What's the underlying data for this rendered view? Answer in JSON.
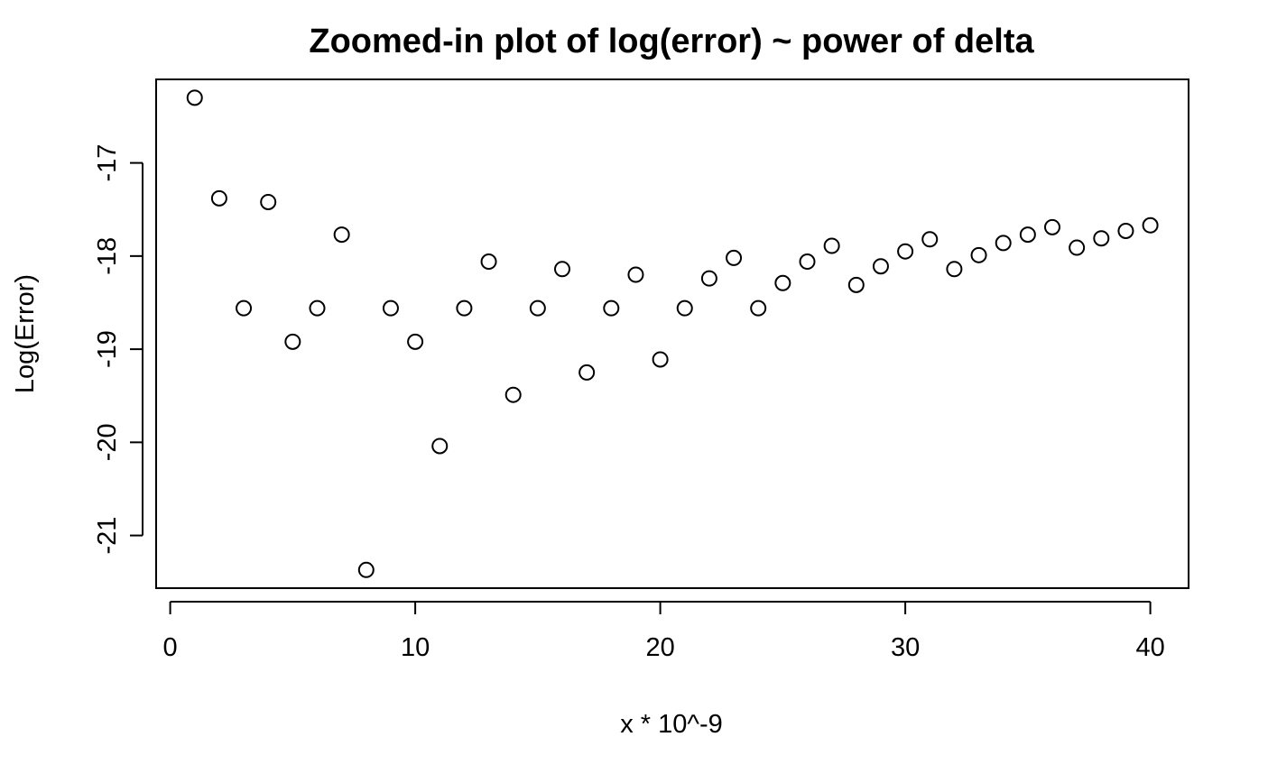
{
  "chart_data": {
    "type": "scatter",
    "title": "Zoomed-in plot of log(error) ~ power of delta",
    "xlabel": "x * 10^-9",
    "ylabel": "Log(Error)",
    "xlim": [
      0,
      42
    ],
    "ylim": [
      -21.55,
      -16.3
    ],
    "xticks": [
      0,
      10,
      20,
      30,
      40
    ],
    "yticks": [
      -17,
      -18,
      -19,
      -20,
      -21
    ],
    "grid": false,
    "legend": "none",
    "x": [
      1,
      2,
      3,
      4,
      5,
      6,
      7,
      8,
      9,
      10,
      11,
      12,
      13,
      14,
      15,
      16,
      17,
      18,
      19,
      20,
      21,
      22,
      23,
      24,
      25,
      26,
      27,
      28,
      29,
      30,
      31,
      32,
      33,
      34,
      35,
      36,
      37,
      38,
      39,
      40
    ],
    "y": [
      -16.3,
      -17.38,
      -18.56,
      -17.42,
      -18.92,
      -18.56,
      -17.77,
      -21.37,
      -18.56,
      -18.92,
      -20.04,
      -18.56,
      -18.06,
      -19.49,
      -18.56,
      -18.14,
      -19.25,
      -18.56,
      -18.2,
      -19.11,
      -18.56,
      -18.24,
      -18.02,
      -18.56,
      -18.29,
      -18.06,
      -17.89,
      -18.31,
      -18.11,
      -17.95,
      -17.82,
      -18.14,
      -17.99,
      -17.86,
      -17.77,
      -17.69,
      -17.91,
      -17.81,
      -17.73,
      -17.67
    ]
  }
}
